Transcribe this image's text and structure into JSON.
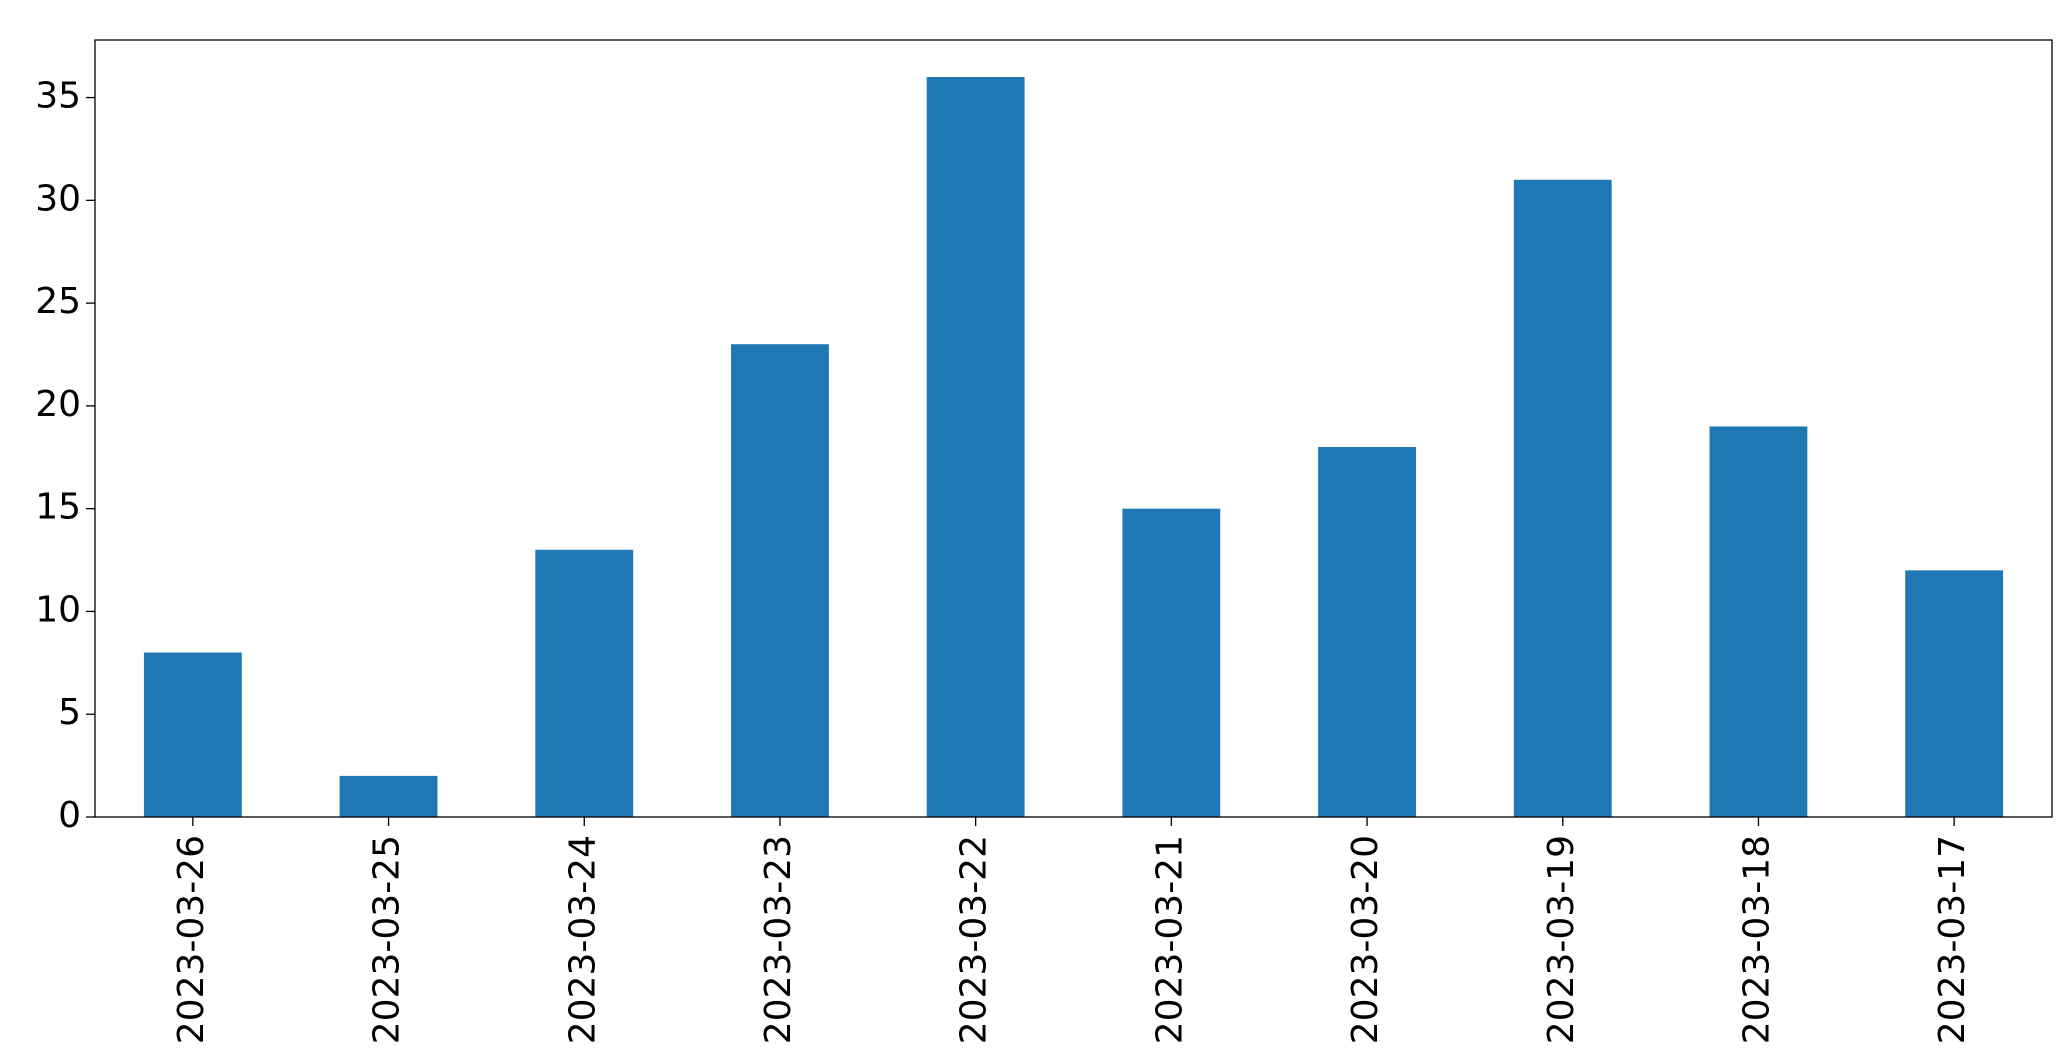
{
  "chart_data": {
    "type": "bar",
    "categories": [
      "2023-03-26",
      "2023-03-25",
      "2023-03-24",
      "2023-03-23",
      "2023-03-22",
      "2023-03-21",
      "2023-03-20",
      "2023-03-19",
      "2023-03-18",
      "2023-03-17"
    ],
    "values": [
      8,
      2,
      13,
      23,
      36,
      15,
      18,
      31,
      19,
      12
    ],
    "color": "#1f77b4",
    "ylim": [
      0,
      37.8
    ],
    "yticks": [
      0,
      5,
      10,
      15,
      20,
      25,
      30,
      35
    ],
    "grid": false
  }
}
